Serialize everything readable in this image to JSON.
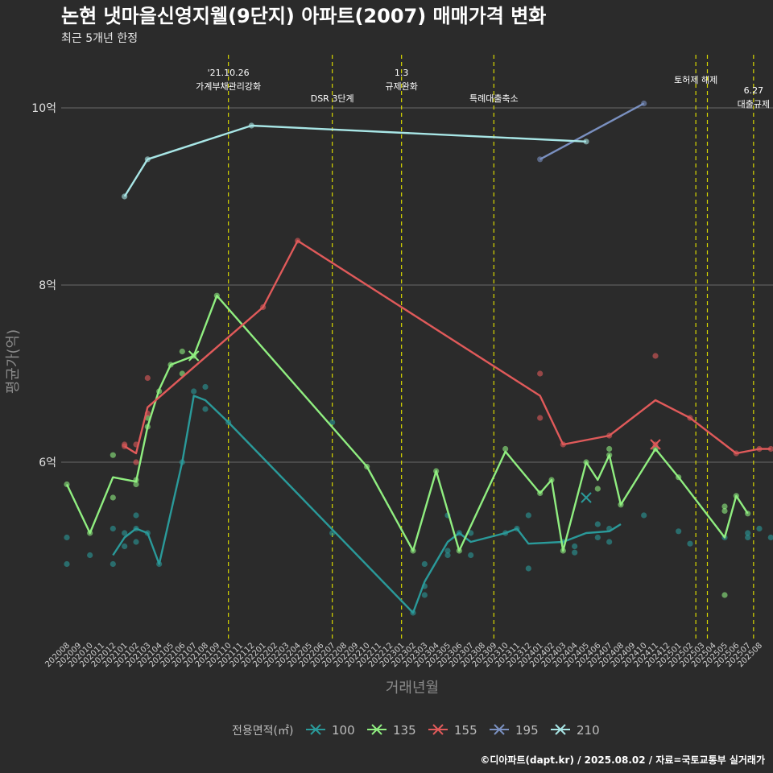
{
  "title": "논현 냇마을신영지웰(9단지) 아파트(2007) 매매가격 변화",
  "subtitle": "최근 5개년 한정",
  "caption": "©디아파트(dapt.kr) / 2025.08.02 / 자료=국토교통부 실거래가",
  "chart_data": {
    "type": "line",
    "xlabel": "거래년월",
    "ylabel": "평균가(억)",
    "ylim": [
      4.0,
      10.6
    ],
    "yticks": [
      {
        "value": 6,
        "label": "6억"
      },
      {
        "value": 8,
        "label": "8억"
      },
      {
        "value": 10,
        "label": "10억"
      }
    ],
    "categories": [
      "202008",
      "202009",
      "202010",
      "202011",
      "202012",
      "202101",
      "202102",
      "202103",
      "202104",
      "202105",
      "202106",
      "202107",
      "202108",
      "202109",
      "202110",
      "202111",
      "202112",
      "202201",
      "202202",
      "202203",
      "202204",
      "202205",
      "202206",
      "202207",
      "202208",
      "202209",
      "202210",
      "202211",
      "202212",
      "202301",
      "202302",
      "202303",
      "202304",
      "202305",
      "202306",
      "202307",
      "202308",
      "202309",
      "202310",
      "202311",
      "202312",
      "202401",
      "202402",
      "202403",
      "202404",
      "202405",
      "202406",
      "202407",
      "202408",
      "202409",
      "202410",
      "202411",
      "202412",
      "202501",
      "202502",
      "202503",
      "202504",
      "202505",
      "202506",
      "202507",
      "202508"
    ],
    "events": [
      {
        "x": 14,
        "line1": "'21.10.26",
        "line2": "가계부채관리강화",
        "pos": "high"
      },
      {
        "x": 23,
        "line1": "",
        "line2": "DSR 3단계",
        "pos": "low"
      },
      {
        "x": 29,
        "line1": "1.3",
        "line2": "규제완화",
        "pos": "high"
      },
      {
        "x": 37,
        "line1": "",
        "line2": "특례대출축소",
        "pos": "low"
      },
      {
        "x": 54.5,
        "line1": "",
        "line2": "토허제 해제",
        "pos": "mid"
      },
      {
        "x": 55.5,
        "line1": "",
        "line2": "",
        "pos": "none"
      },
      {
        "x": 59.5,
        "line1": "6.27",
        "line2": "대출규제",
        "pos": "lowest"
      }
    ],
    "legend": {
      "title": "전용면적(㎡)",
      "position": "bottom"
    },
    "series": [
      {
        "name": "100",
        "color": "#2a9a9a",
        "line": [
          [
            4,
            4.95
          ],
          [
            5,
            5.15
          ],
          [
            6,
            5.25
          ],
          [
            7,
            5.2
          ],
          [
            8,
            4.85
          ],
          [
            10,
            6.0
          ],
          [
            11,
            6.75
          ],
          [
            12,
            6.7
          ],
          [
            14,
            6.45
          ],
          [
            30,
            4.3
          ],
          [
            31,
            4.65
          ],
          [
            33,
            5.1
          ],
          [
            34,
            5.2
          ],
          [
            35,
            5.1
          ],
          [
            38,
            5.2
          ],
          [
            39,
            5.25
          ],
          [
            40,
            5.08
          ],
          [
            43,
            5.1
          ],
          [
            45,
            5.2
          ],
          [
            47,
            5.22
          ],
          [
            48,
            5.3
          ]
        ],
        "points": [
          [
            0,
            5.15
          ],
          [
            0,
            4.85
          ],
          [
            2,
            4.95
          ],
          [
            4,
            4.85
          ],
          [
            4,
            5.25
          ],
          [
            5,
            5.05
          ],
          [
            5,
            5.2
          ],
          [
            6,
            5.4
          ],
          [
            6,
            5.25
          ],
          [
            6,
            5.1
          ],
          [
            7,
            5.2
          ],
          [
            8,
            4.85
          ],
          [
            10,
            6.0
          ],
          [
            11,
            6.8
          ],
          [
            12,
            6.6
          ],
          [
            12,
            6.85
          ],
          [
            14,
            6.45
          ],
          [
            23,
            5.2
          ],
          [
            23,
            6.45
          ],
          [
            30,
            4.3
          ],
          [
            31,
            4.5
          ],
          [
            31,
            4.6
          ],
          [
            31,
            4.85
          ],
          [
            33,
            4.95
          ],
          [
            33,
            5.0
          ],
          [
            33,
            5.4
          ],
          [
            34,
            5.2
          ],
          [
            35,
            4.95
          ],
          [
            35,
            5.2
          ],
          [
            38,
            5.2
          ],
          [
            39,
            5.25
          ],
          [
            40,
            5.4
          ],
          [
            40,
            4.8
          ],
          [
            43,
            5.1
          ],
          [
            44,
            5.05
          ],
          [
            44,
            4.98
          ],
          [
            46,
            5.3
          ],
          [
            46,
            5.15
          ],
          [
            47,
            5.25
          ],
          [
            47,
            5.1
          ],
          [
            50,
            5.4
          ],
          [
            53,
            5.22
          ],
          [
            54,
            5.08
          ],
          [
            57,
            5.15
          ],
          [
            59,
            5.2
          ],
          [
            59,
            5.15
          ],
          [
            60,
            5.25
          ],
          [
            61,
            5.15
          ]
        ],
        "markers": [
          [
            45,
            5.6
          ]
        ]
      },
      {
        "name": "135",
        "color": "#90ee80",
        "line": [
          [
            0,
            5.75
          ],
          [
            2,
            5.2
          ],
          [
            4,
            5.83
          ],
          [
            6,
            5.78
          ],
          [
            7,
            6.4
          ],
          [
            8,
            6.82
          ],
          [
            9,
            7.1
          ],
          [
            11,
            7.2
          ],
          [
            13,
            7.88
          ],
          [
            26,
            5.95
          ],
          [
            30,
            5.0
          ],
          [
            32,
            5.9
          ],
          [
            34,
            5.0
          ],
          [
            38,
            6.12
          ],
          [
            41,
            5.65
          ],
          [
            42,
            5.8
          ],
          [
            43,
            5.0
          ],
          [
            45,
            6.0
          ],
          [
            46,
            5.8
          ],
          [
            47,
            6.08
          ],
          [
            48,
            5.52
          ],
          [
            51,
            6.15
          ],
          [
            53,
            5.83
          ],
          [
            57,
            5.15
          ],
          [
            58,
            5.62
          ],
          [
            59,
            5.42
          ]
        ],
        "points": [
          [
            0,
            5.75
          ],
          [
            2,
            5.2
          ],
          [
            4,
            5.6
          ],
          [
            4,
            6.08
          ],
          [
            6,
            5.75
          ],
          [
            6,
            5.8
          ],
          [
            7,
            6.4
          ],
          [
            7,
            6.5
          ],
          [
            8,
            6.8
          ],
          [
            9,
            7.1
          ],
          [
            10,
            7.0
          ],
          [
            10,
            7.25
          ],
          [
            11,
            7.2
          ],
          [
            13,
            7.88
          ],
          [
            26,
            5.95
          ],
          [
            30,
            5.0
          ],
          [
            32,
            5.9
          ],
          [
            34,
            5.0
          ],
          [
            38,
            6.15
          ],
          [
            41,
            5.65
          ],
          [
            42,
            5.8
          ],
          [
            43,
            5.0
          ],
          [
            45,
            6.0
          ],
          [
            46,
            5.7
          ],
          [
            47,
            6.15
          ],
          [
            47,
            6.08
          ],
          [
            48,
            5.52
          ],
          [
            51,
            6.15
          ],
          [
            53,
            5.83
          ],
          [
            57,
            5.5
          ],
          [
            57,
            5.45
          ],
          [
            57,
            4.5
          ],
          [
            58,
            5.62
          ],
          [
            59,
            5.42
          ]
        ],
        "markers": [
          [
            11,
            7.2
          ]
        ]
      },
      {
        "name": "155",
        "color": "#e05a5a",
        "line": [
          [
            5,
            6.18
          ],
          [
            6,
            6.1
          ],
          [
            7,
            6.62
          ],
          [
            17,
            7.75
          ],
          [
            20,
            8.5
          ],
          [
            41,
            6.75
          ],
          [
            43,
            6.2
          ],
          [
            47,
            6.3
          ],
          [
            51,
            6.7
          ],
          [
            54,
            6.5
          ],
          [
            58,
            6.1
          ],
          [
            60,
            6.15
          ],
          [
            61,
            6.15
          ]
        ],
        "points": [
          [
            5,
            6.18
          ],
          [
            5,
            6.2
          ],
          [
            6,
            6.0
          ],
          [
            6,
            6.2
          ],
          [
            7,
            6.95
          ],
          [
            7,
            6.55
          ],
          [
            17,
            7.75
          ],
          [
            20,
            8.5
          ],
          [
            41,
            7.0
          ],
          [
            41,
            6.5
          ],
          [
            43,
            6.2
          ],
          [
            47,
            6.3
          ],
          [
            51,
            7.2
          ],
          [
            51,
            6.2
          ],
          [
            54,
            6.5
          ],
          [
            58,
            6.1
          ],
          [
            60,
            6.15
          ],
          [
            61,
            6.15
          ]
        ],
        "markers": [
          [
            51,
            6.2
          ]
        ]
      },
      {
        "name": "195",
        "color": "#7a90c0",
        "line": [
          [
            41,
            9.42
          ],
          [
            50,
            10.05
          ]
        ],
        "points": [
          [
            41,
            9.42
          ],
          [
            50,
            10.05
          ]
        ],
        "markers": []
      },
      {
        "name": "210",
        "color": "#a8e6e6",
        "line": [
          [
            5,
            9.0
          ],
          [
            7,
            9.42
          ],
          [
            16,
            9.8
          ],
          [
            45,
            9.62
          ]
        ],
        "points": [
          [
            5,
            9.0
          ],
          [
            7,
            9.42
          ],
          [
            16,
            9.8
          ],
          [
            45,
            9.62
          ]
        ],
        "markers": []
      }
    ]
  }
}
